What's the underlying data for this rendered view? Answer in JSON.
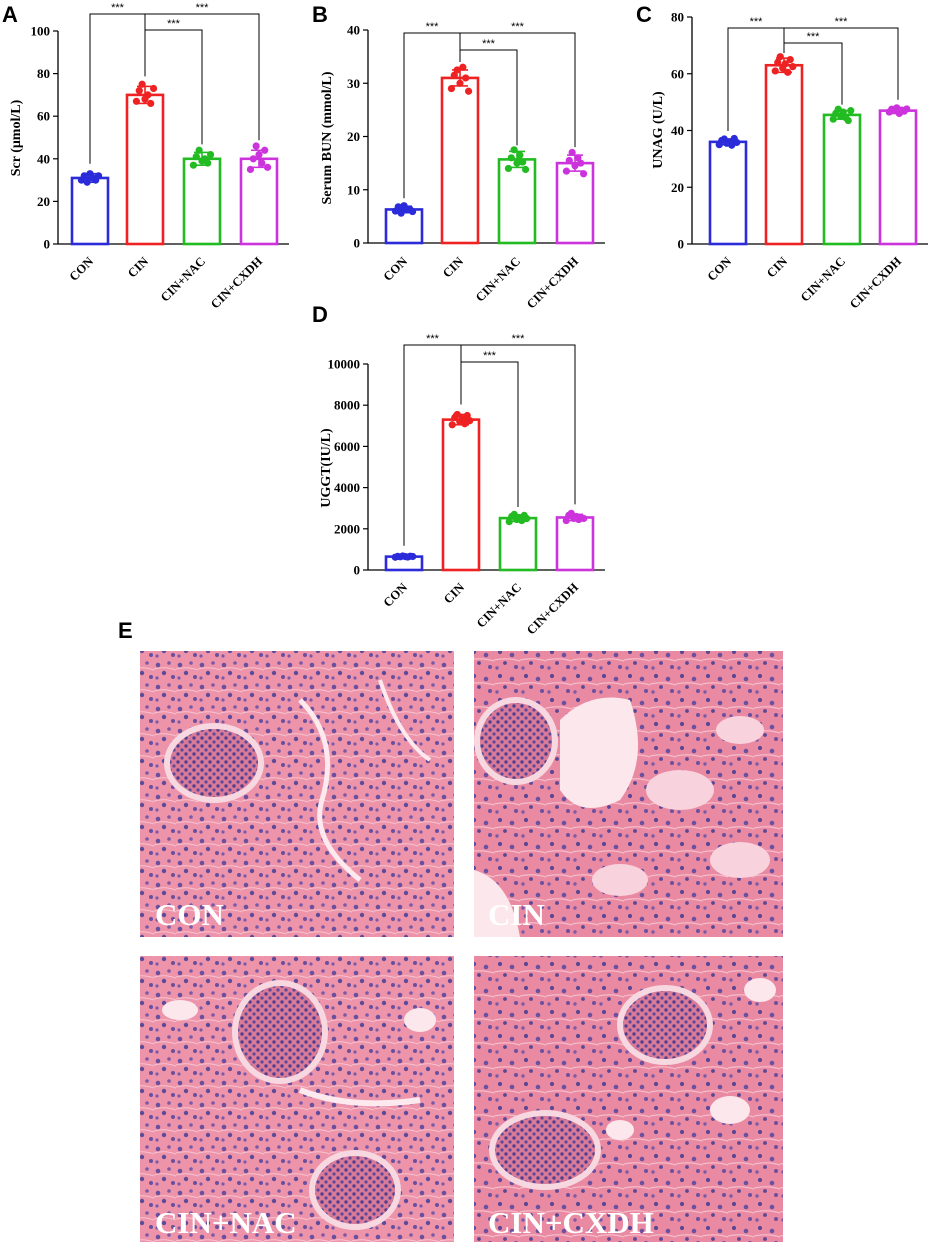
{
  "figure": {
    "panel_letters": [
      "A",
      "B",
      "C",
      "D",
      "E"
    ]
  },
  "chart_data": [
    {
      "panel": "A",
      "type": "bar",
      "ylabel": "Scr (μmol/L)",
      "categories": [
        "CON",
        "CIN",
        "CIN+NAC",
        "CIN+CXDH"
      ],
      "values": [
        31,
        70,
        40,
        40
      ],
      "sd": [
        2,
        4,
        3,
        4
      ],
      "points": [
        [
          30,
          32,
          29,
          33,
          31,
          30,
          32
        ],
        [
          67,
          72,
          75,
          68,
          70,
          66,
          73
        ],
        [
          37,
          41,
          44,
          39,
          40,
          38,
          42
        ],
        [
          35,
          40,
          46,
          42,
          38,
          44,
          36
        ]
      ],
      "ylim": [
        0,
        100
      ],
      "yticks": [
        0,
        20,
        40,
        60,
        80,
        100
      ],
      "colors": [
        "#2b2bd9",
        "#ee2222",
        "#22bb22",
        "#cc33dd"
      ],
      "comparisons": [
        {
          "from": 0,
          "to": 1,
          "label": "***"
        },
        {
          "from": 1,
          "to": 2,
          "label": "***"
        },
        {
          "from": 1,
          "to": 3,
          "label": "***"
        }
      ],
      "grid": false
    },
    {
      "panel": "B",
      "type": "bar",
      "ylabel": "Serum BUN (mmol/L)",
      "categories": [
        "CON",
        "CIN",
        "CIN+NAC",
        "CIN+CXDH"
      ],
      "values": [
        6.3,
        31,
        15.7,
        15
      ],
      "sd": [
        0.6,
        1.5,
        1.5,
        1.5
      ],
      "points": [
        [
          6.0,
          6.8,
          5.6,
          7.0,
          6.2,
          6.4,
          5.9
        ],
        [
          29,
          31.5,
          32.5,
          30,
          33,
          31,
          28.5
        ],
        [
          14,
          16,
          17.5,
          15,
          16.5,
          15.2,
          13.8
        ],
        [
          13.5,
          15.5,
          17,
          14.5,
          16,
          15,
          13
        ]
      ],
      "ylim": [
        0,
        40
      ],
      "yticks": [
        0,
        10,
        20,
        30,
        40
      ],
      "colors": [
        "#2b2bd9",
        "#ee2222",
        "#22bb22",
        "#cc33dd"
      ],
      "comparisons": [
        {
          "from": 0,
          "to": 1,
          "label": "***"
        },
        {
          "from": 1,
          "to": 2,
          "label": "***"
        },
        {
          "from": 1,
          "to": 3,
          "label": "***"
        }
      ],
      "grid": false
    },
    {
      "panel": "C",
      "type": "bar",
      "ylabel": "UNAG (U/L)",
      "categories": [
        "CON",
        "CIN",
        "CIN+NAC",
        "CIN+CXDH"
      ],
      "values": [
        36,
        63,
        45.5,
        47
      ],
      "sd": [
        1,
        2.5,
        1.5,
        1
      ],
      "points": [
        [
          35,
          36.5,
          37,
          35.5,
          36,
          34.8,
          37.2,
          35.8
        ],
        [
          61,
          64,
          66,
          62,
          63.5,
          60.5,
          65,
          62.5
        ],
        [
          44,
          46,
          47.5,
          45,
          46.5,
          44.5,
          43.5,
          47
        ],
        [
          46.5,
          47.5,
          47,
          48,
          46,
          47.2,
          46.8,
          47.6
        ]
      ],
      "ylim": [
        0,
        80
      ],
      "yticks": [
        0,
        20,
        40,
        60,
        80
      ],
      "colors": [
        "#2b2bd9",
        "#ee2222",
        "#22bb22",
        "#cc33dd"
      ],
      "comparisons": [
        {
          "from": 0,
          "to": 1,
          "label": "***"
        },
        {
          "from": 1,
          "to": 2,
          "label": "***"
        },
        {
          "from": 1,
          "to": 3,
          "label": "***"
        }
      ],
      "grid": false
    },
    {
      "panel": "D",
      "type": "bar",
      "ylabel": "UGGT(IU/L)",
      "categories": [
        "CON",
        "CIN",
        "CIN+NAC",
        "CIN+CXDH"
      ],
      "values": [
        650,
        7300,
        2520,
        2550
      ],
      "sd": [
        40,
        250,
        150,
        150
      ],
      "points": [
        [
          620,
          660,
          640,
          680,
          650,
          630,
          670,
          655
        ],
        [
          7050,
          7400,
          7550,
          7200,
          7350,
          7100,
          7500,
          7250
        ],
        [
          2350,
          2600,
          2700,
          2450,
          2550,
          2400,
          2650,
          2500
        ],
        [
          2400,
          2650,
          2750,
          2500,
          2600,
          2450,
          2550,
          2500
        ]
      ],
      "ylim": [
        0,
        10000
      ],
      "yticks": [
        0,
        2000,
        4000,
        6000,
        8000,
        10000
      ],
      "colors": [
        "#2b2bd9",
        "#ee2222",
        "#22bb22",
        "#cc33dd"
      ],
      "comparisons": [
        {
          "from": 0,
          "to": 1,
          "label": "***"
        },
        {
          "from": 1,
          "to": 2,
          "label": "***"
        },
        {
          "from": 1,
          "to": 3,
          "label": "***"
        }
      ],
      "grid": false
    }
  ],
  "micrographs": {
    "stain_colors": {
      "background": "#f2a6b8",
      "tissue": "#e9879f",
      "nucleus": "#5d4a99",
      "lumen": "#fbe7ec"
    },
    "labels": [
      "CON",
      "CIN",
      "CIN+NAC",
      "CIN+CXDH"
    ]
  }
}
